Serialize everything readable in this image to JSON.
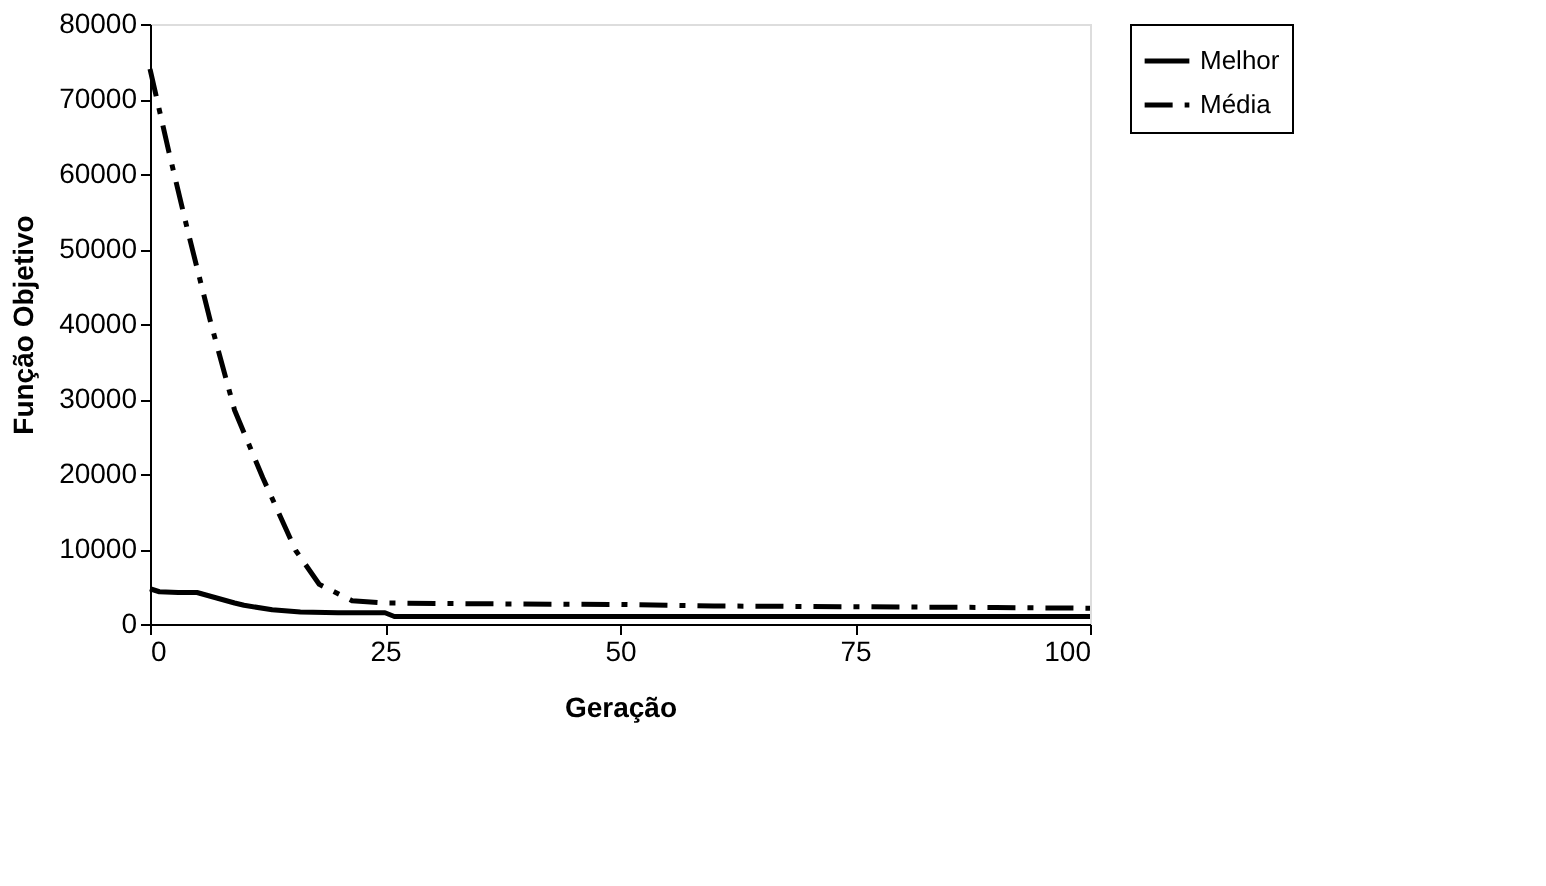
{
  "chart_data": {
    "type": "line",
    "xlabel": "Geração",
    "ylabel": "Função Objetivo",
    "xlim": [
      0,
      100
    ],
    "xticks": [
      0,
      25,
      50,
      75,
      100
    ],
    "ylim": [
      0,
      80000
    ],
    "yticks": [
      0,
      10000,
      20000,
      30000,
      40000,
      50000,
      60000,
      70000,
      80000
    ],
    "grid": false,
    "legend": "right",
    "marker": "none",
    "series": [
      {
        "name": "Melhor",
        "color": "#000000",
        "line_style": "solid",
        "x": [
          0,
          1,
          3,
          5,
          7,
          9,
          10,
          13,
          16,
          20,
          25,
          26,
          40,
          60,
          80,
          100
        ],
        "values": [
          4700,
          4300,
          4200,
          4200,
          3500,
          2800,
          2500,
          1900,
          1600,
          1500,
          1500,
          1000,
          1000,
          1000,
          1000,
          1000
        ]
      },
      {
        "name": "Média",
        "color": "#000000",
        "line_style": "dashed",
        "x": [
          0,
          2,
          4,
          6.5,
          9,
          12,
          15.5,
          18,
          21.5,
          25,
          35,
          50,
          60,
          75,
          90,
          100
        ],
        "values": [
          74000,
          63000,
          52500,
          40000,
          28500,
          19500,
          9800,
          5300,
          3100,
          2800,
          2700,
          2600,
          2400,
          2300,
          2200,
          2100
        ]
      }
    ]
  }
}
